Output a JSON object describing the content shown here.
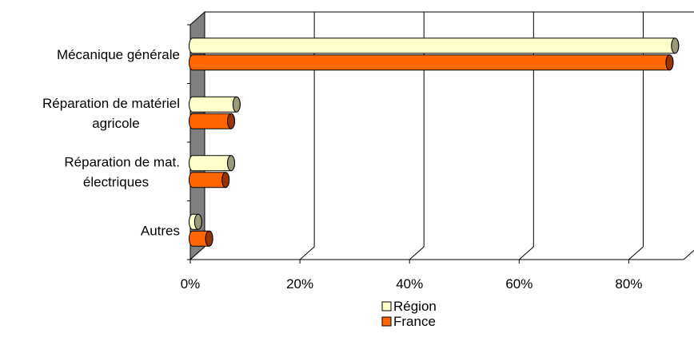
{
  "chart_data": {
    "type": "bar",
    "orientation": "horizontal",
    "style": "3d-cylinder",
    "categories": [
      [
        "Mécanique générale"
      ],
      [
        "Réparation de matériel",
        "agricole"
      ],
      [
        "Réparation de mat.",
        "électriques"
      ],
      [
        "Autres"
      ]
    ],
    "series": [
      {
        "name": "Région",
        "color": "#FFFFCC",
        "values": [
          88,
          8,
          7,
          1
        ]
      },
      {
        "name": "France",
        "color": "#FF6600",
        "values": [
          87,
          7,
          6,
          3
        ]
      }
    ],
    "xlim": [
      0,
      90
    ],
    "xticks": [
      0,
      20,
      40,
      60,
      80
    ],
    "xtick_labels": [
      "0%",
      "20%",
      "40%",
      "60%",
      "80%"
    ],
    "grid": true,
    "legend_position": "bottom",
    "wall_color": "#808080"
  }
}
